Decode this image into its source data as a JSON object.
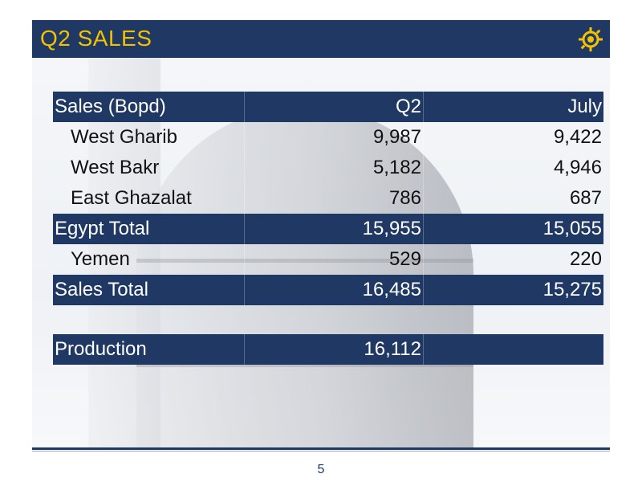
{
  "slide": {
    "title": "Q2 SALES",
    "page_number": "5"
  },
  "table": {
    "header": {
      "label": "Sales (Bopd)",
      "q2": "Q2",
      "july": "July"
    },
    "rows": [
      {
        "label": "West Gharib",
        "q2": "9,987",
        "july": "9,422"
      },
      {
        "label": "West Bakr",
        "q2": "5,182",
        "july": "4,946"
      },
      {
        "label": "East Ghazalat",
        "q2": "786",
        "july": "687"
      },
      {
        "label": "Egypt Total",
        "q2": "15,955",
        "july": "15,055"
      },
      {
        "label": "Yemen",
        "q2": "529",
        "july": "220"
      },
      {
        "label": "Sales Total",
        "q2": "16,485",
        "july": "15,275"
      }
    ],
    "production": {
      "label": "Production",
      "q2": "16,112",
      "july": ""
    }
  },
  "colors": {
    "navy": "#1f3864",
    "title_gold": "#f2c200"
  },
  "icons": {
    "logo": "sun-gear-logo-icon"
  }
}
